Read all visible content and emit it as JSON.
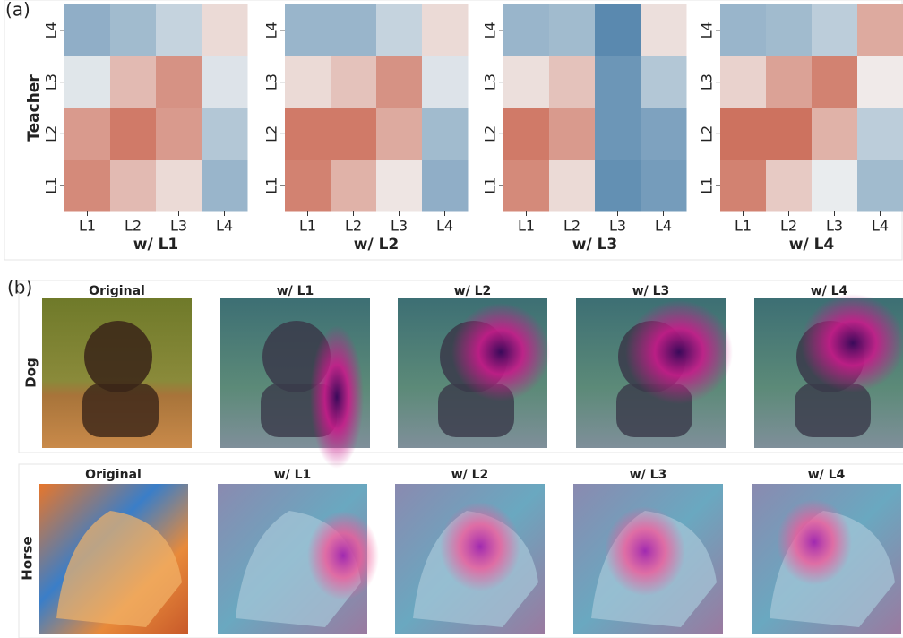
{
  "panel_a_label": "(a)",
  "chart_data": [
    {
      "type": "heatmap",
      "y_label": "Teacher",
      "x_label": "w/ L1",
      "x_categories": [
        "L1",
        "L2",
        "L3",
        "L4"
      ],
      "y_categories": [
        "L4",
        "L3",
        "L2",
        "L1"
      ],
      "values": [
        [
          -0.55,
          -0.45,
          -0.25,
          0.15
        ],
        [
          -0.1,
          0.35,
          0.6,
          -0.12
        ],
        [
          0.55,
          0.75,
          0.55,
          -0.35
        ],
        [
          0.65,
          0.35,
          0.15,
          -0.5
        ]
      ],
      "zlim": [
        -1,
        1
      ],
      "colors": [
        "#3f77a3",
        "#f2f2f2",
        "#c4523a"
      ]
    },
    {
      "type": "heatmap",
      "x_label": "w/ L2",
      "x_categories": [
        "L1",
        "L2",
        "L3",
        "L4"
      ],
      "y_categories": [
        "L4",
        "L3",
        "L2",
        "L1"
      ],
      "values": [
        [
          -0.5,
          -0.5,
          -0.25,
          0.15
        ],
        [
          0.15,
          0.3,
          0.6,
          -0.12
        ],
        [
          0.75,
          0.75,
          0.45,
          -0.45
        ],
        [
          0.7,
          0.4,
          0.08,
          -0.55
        ]
      ],
      "zlim": [
        -1,
        1
      ],
      "colors": [
        "#3f77a3",
        "#f2f2f2",
        "#c4523a"
      ]
    },
    {
      "type": "heatmap",
      "x_label": "w/ L3",
      "x_categories": [
        "L1",
        "L2",
        "L3",
        "L4"
      ],
      "y_categories": [
        "L4",
        "L3",
        "L2",
        "L1"
      ],
      "values": [
        [
          -0.5,
          -0.45,
          -0.85,
          0.12
        ],
        [
          0.12,
          0.3,
          -0.75,
          -0.35
        ],
        [
          0.75,
          0.55,
          -0.75,
          -0.65
        ],
        [
          0.65,
          0.15,
          -0.8,
          -0.7
        ]
      ],
      "zlim": [
        -1,
        1
      ],
      "colors": [
        "#3f77a3",
        "#f2f2f2",
        "#c4523a"
      ]
    },
    {
      "type": "heatmap",
      "x_label": "w/ L4",
      "x_categories": [
        "L1",
        "L2",
        "L3",
        "L4"
      ],
      "y_categories": [
        "L4",
        "L3",
        "L2",
        "L1"
      ],
      "values": [
        [
          -0.5,
          -0.45,
          -0.3,
          0.45
        ],
        [
          0.2,
          0.5,
          0.7,
          0.05
        ],
        [
          0.8,
          0.8,
          0.4,
          -0.3
        ],
        [
          0.7,
          0.25,
          -0.05,
          -0.45
        ]
      ],
      "zlim": [
        -1,
        1
      ],
      "colors": [
        "#3f77a3",
        "#f2f2f2",
        "#c4523a"
      ]
    }
  ],
  "gradcam": {
    "label": "(b)",
    "rows": [
      {
        "label": "Dog",
        "titles": [
          "Original",
          "w/ L1",
          "w/ L2",
          "w/ L3",
          "w/ L4"
        ]
      },
      {
        "label": "Horse",
        "titles": [
          "Original",
          "w/ L1",
          "w/ L2",
          "w/ L3",
          "w/ L4"
        ]
      }
    ]
  }
}
